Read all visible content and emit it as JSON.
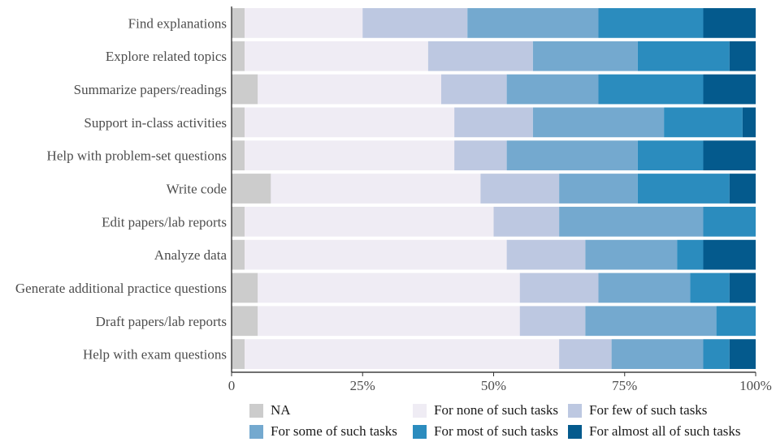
{
  "chart_data": {
    "type": "bar",
    "orientation": "horizontal",
    "stacked": true,
    "normalized": true,
    "categories": [
      "Find explanations",
      "Explore related topics",
      "Summarize papers/readings",
      "Support in-class activities",
      "Help with problem-set questions",
      "Write code",
      "Edit papers/lab reports",
      "Analyze data",
      "Generate additional practice questions",
      "Draft papers/lab reports",
      "Help with exam questions"
    ],
    "series": [
      {
        "name": "NA",
        "color": "#cccccc",
        "values": [
          2.5,
          2.5,
          5,
          2.5,
          2.5,
          7.5,
          2.5,
          2.5,
          5,
          5,
          2.5
        ]
      },
      {
        "name": "For none of such tasks",
        "color": "#efecf4",
        "values": [
          22.5,
          35,
          35,
          40,
          40,
          40,
          47.5,
          50,
          50,
          50,
          60
        ]
      },
      {
        "name": "For few of such tasks",
        "color": "#bdc8e1",
        "values": [
          20,
          20,
          12.5,
          15,
          10,
          15,
          12.5,
          15,
          15,
          12.5,
          10
        ]
      },
      {
        "name": "For some of such tasks",
        "color": "#74a9cf",
        "values": [
          25,
          20,
          17.5,
          25,
          25,
          15,
          27.5,
          17.5,
          17.5,
          25,
          17.5
        ]
      },
      {
        "name": "For most of such tasks",
        "color": "#2b8cbe",
        "values": [
          20,
          17.5,
          20,
          15,
          12.5,
          17.5,
          10,
          5,
          7.5,
          7.5,
          5
        ]
      },
      {
        "name": "For almost all of such tasks",
        "color": "#045a8d",
        "values": [
          10,
          5,
          10,
          2.5,
          10,
          5,
          0,
          10,
          5,
          0,
          5
        ]
      }
    ],
    "xlim": [
      0,
      100
    ],
    "xticks": [
      0,
      25,
      50,
      75,
      100
    ],
    "xtick_labels": [
      "0",
      "25%",
      "50%",
      "75%",
      "100%"
    ],
    "xlabel": "",
    "ylabel": "",
    "title": "",
    "grid": false,
    "legend_position": "bottom"
  }
}
